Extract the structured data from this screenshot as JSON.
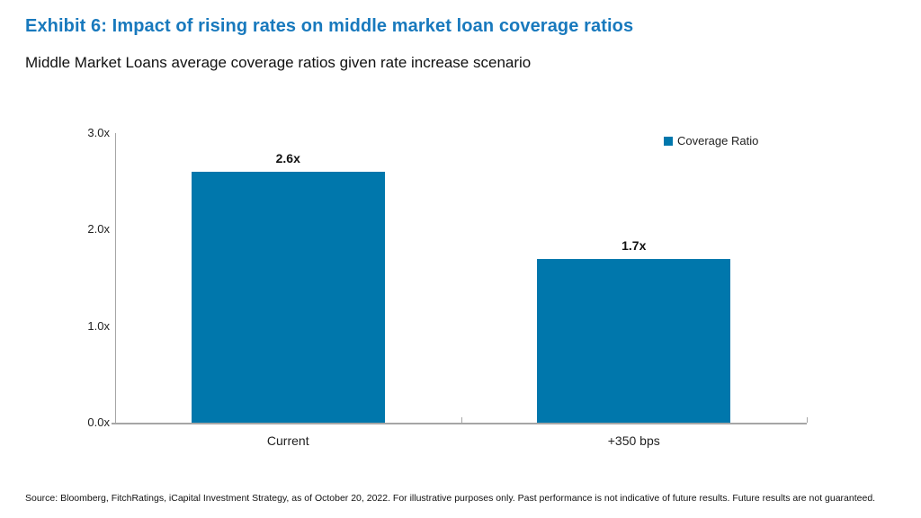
{
  "header": {
    "title": "Exhibit 6: Impact of rising rates on middle market loan coverage ratios",
    "subtitle": "Middle Market Loans average coverage ratios given rate increase scenario",
    "title_color": "#1879BD"
  },
  "chart_data": {
    "type": "bar",
    "title": "Middle Market Loans average coverage ratios given rate increase scenario",
    "categories": [
      "Current",
      "+350 bps"
    ],
    "series": [
      {
        "name": "Coverage Ratio",
        "values": [
          2.6,
          1.7
        ]
      }
    ],
    "value_labels": [
      "2.6x",
      "1.7x"
    ],
    "yticks": [
      {
        "value": 0,
        "label": "0.0x"
      },
      {
        "value": 1,
        "label": "1.0x"
      },
      {
        "value": 2,
        "label": "2.0x"
      },
      {
        "value": 3,
        "label": "3.0x"
      }
    ],
    "ylim": [
      0,
      3
    ],
    "xlabel": "",
    "ylabel": "",
    "grid": false,
    "legend_position": "top-right",
    "bar_color": "#0077AC",
    "axis_color": "#A6A6A6"
  },
  "legend": {
    "label": "Coverage Ratio"
  },
  "footer": {
    "source": "Source: Bloomberg, FitchRatings, iCapital Investment Strategy, as of October 20, 2022. For illustrative purposes only. Past performance is not indicative of future results. Future results are not guaranteed."
  }
}
